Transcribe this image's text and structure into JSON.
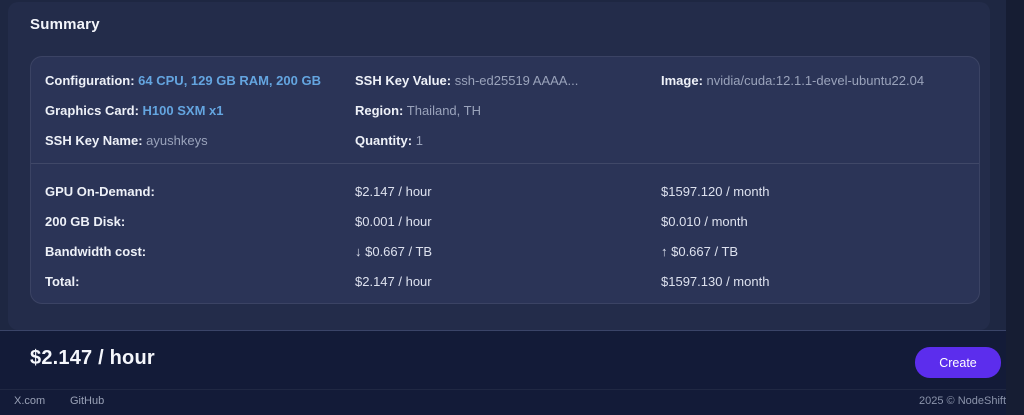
{
  "page": {
    "title": "Summary"
  },
  "colors": {
    "accent_blue": "#64a5e0",
    "button_purple": "#5c2ded",
    "panel_bg": "#232c4a",
    "card_bg": "#2b3457",
    "bar_bg": "#131b38"
  },
  "config": {
    "col1": [
      {
        "label": "Configuration:",
        "value": "64 CPU, 129 GB RAM, 200 GB"
      },
      {
        "label": "Graphics Card:",
        "value": "H100 SXM x1"
      },
      {
        "label": "SSH Key Name:",
        "value": "ayushkeys"
      }
    ],
    "col2": [
      {
        "label": "SSH Key Value:",
        "value": "ssh-ed25519 AAAA..."
      },
      {
        "label": "Region:",
        "value": "Thailand, TH"
      },
      {
        "label": "Quantity:",
        "value": "1"
      }
    ],
    "col3": [
      {
        "label": "Image:",
        "value": "nvidia/cuda:12.1.1-devel-ubuntu22.04"
      }
    ]
  },
  "pricing": {
    "rows": [
      {
        "label": "GPU On-Demand:",
        "hourly": "$2.147 / hour",
        "monthly": "$1597.120 / month"
      },
      {
        "label": "200 GB Disk:",
        "hourly": "$0.001 / hour",
        "monthly": "$0.010 / month"
      },
      {
        "label": "Bandwidth cost:",
        "hourly": "↓ $0.667 / TB",
        "monthly": "↑ $0.667 / TB"
      },
      {
        "label": "Total:",
        "hourly": "$2.147 / hour",
        "monthly": "$1597.130 / month"
      }
    ]
  },
  "price_bar": {
    "total": "$2.147 / hour",
    "create_label": "Create"
  },
  "footer": {
    "links": [
      {
        "label": "X.com"
      },
      {
        "label": "GitHub"
      }
    ],
    "copyright": "2025 © NodeShift"
  }
}
